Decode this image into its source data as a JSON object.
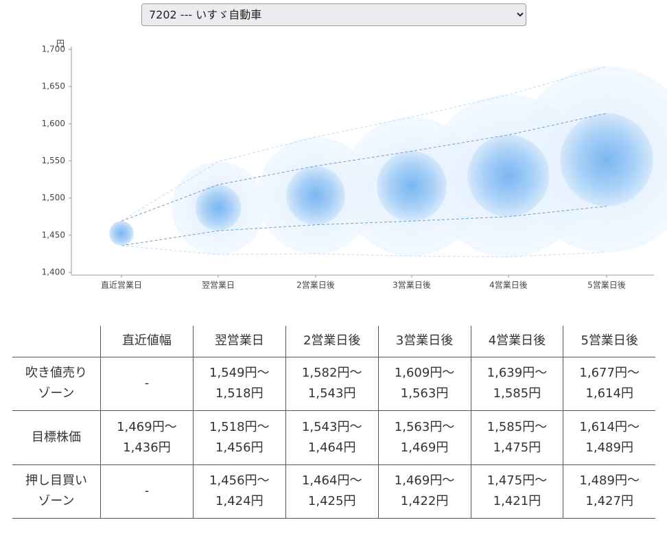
{
  "select": {
    "value": "7202 --- いすゞ自動車"
  },
  "chart_data": {
    "type": "band-bubble",
    "unit": "円",
    "categories": [
      "直近営業日",
      "翌営業日",
      "2営業日後",
      "3営業日後",
      "4営業日後",
      "5営業日後"
    ],
    "series": [
      {
        "color": "#c3dbf1",
        "values": [
          1469,
          1549,
          1582,
          1609,
          1639,
          1677
        ]
      },
      {
        "color": "#6d9fcc",
        "values": [
          1469,
          1518,
          1543,
          1563,
          1585,
          1614
        ]
      },
      {
        "color": "#6d9fcc",
        "values": [
          1436,
          1456,
          1464,
          1469,
          1475,
          1489
        ]
      },
      {
        "color": "#c3dbf1",
        "values": [
          1436,
          1424,
          1425,
          1422,
          1421,
          1427
        ]
      }
    ],
    "ylim": [
      1400,
      1700
    ],
    "yticks": [
      {
        "value": 1400,
        "label": "1,400"
      },
      {
        "value": 1450,
        "label": "1,450"
      },
      {
        "value": 1500,
        "label": "1,500"
      },
      {
        "value": 1550,
        "label": "1,550"
      },
      {
        "value": 1600,
        "label": "1,600"
      },
      {
        "value": 1650,
        "label": "1,650"
      },
      {
        "value": 1700,
        "label": "1,700"
      }
    ]
  },
  "table": {
    "columns": [
      "直近値幅",
      "翌営業日",
      "2営業日後",
      "3営業日後",
      "4営業日後",
      "5営業日後"
    ],
    "rows": [
      {
        "label": [
          "吹き値売り",
          "ゾーン"
        ],
        "cells": [
          [
            "-"
          ],
          [
            "1,549円〜",
            "1,518円"
          ],
          [
            "1,582円〜",
            "1,543円"
          ],
          [
            "1,609円〜",
            "1,563円"
          ],
          [
            "1,639円〜",
            "1,585円"
          ],
          [
            "1,677円〜",
            "1,614円"
          ]
        ]
      },
      {
        "label": [
          "目標株価"
        ],
        "cells": [
          [
            "1,469円〜",
            "1,436円"
          ],
          [
            "1,518円〜",
            "1,456円"
          ],
          [
            "1,543円〜",
            "1,464円"
          ],
          [
            "1,563円〜",
            "1,469円"
          ],
          [
            "1,585円〜",
            "1,475円"
          ],
          [
            "1,614円〜",
            "1,489円"
          ]
        ]
      },
      {
        "label": [
          "押し目買い",
          "ゾーン"
        ],
        "cells": [
          [
            "-"
          ],
          [
            "1,456円〜",
            "1,424円"
          ],
          [
            "1,464円〜",
            "1,425円"
          ],
          [
            "1,469円〜",
            "1,422円"
          ],
          [
            "1,475円〜",
            "1,421円"
          ],
          [
            "1,489円〜",
            "1,427円"
          ]
        ]
      }
    ]
  }
}
